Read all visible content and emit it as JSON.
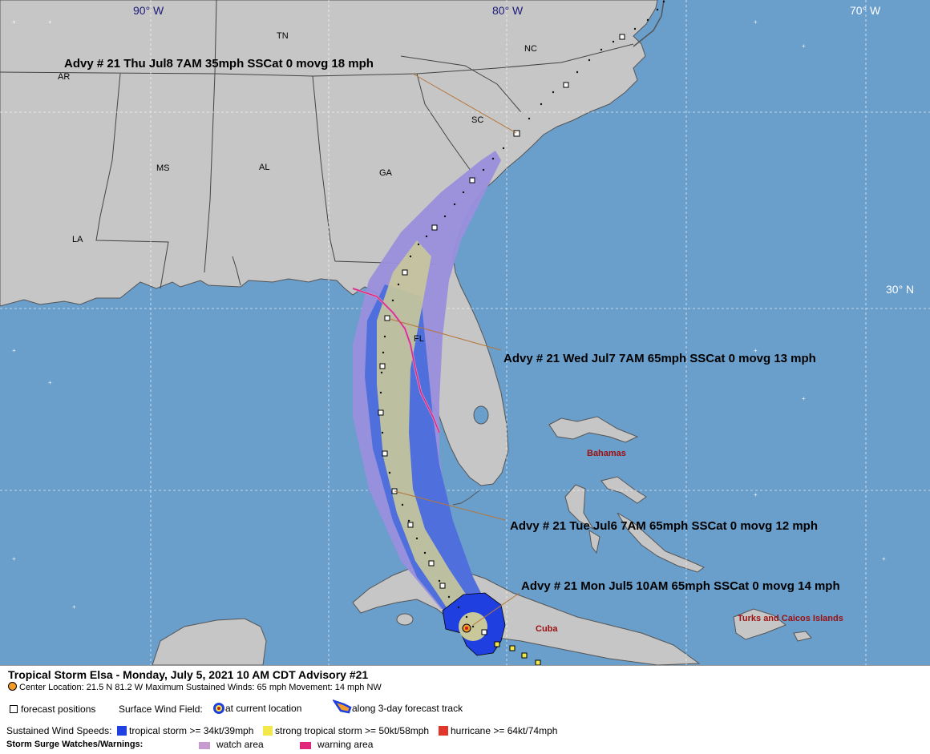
{
  "map": {
    "graticule_labels": {
      "lon_90": "90° W",
      "lon_80": "80° W",
      "lon_70": "70° W",
      "lat_30": "30° N"
    },
    "states": {
      "tn": "TN",
      "nc": "NC",
      "ar": "AR",
      "sc": "SC",
      "ms": "MS",
      "al": "AL",
      "ga": "GA",
      "la": "LA",
      "fl": "FL"
    },
    "places": {
      "bahamas": "Bahamas",
      "cuba": "Cuba",
      "turks": "Turks and Caicos Islands"
    },
    "advisories": [
      "Advy # 21 Thu Jul8 7AM  35mph SSCat 0 movg 18 mph",
      "Advy # 21 Wed Jul7 7AM  65mph SSCat 0 movg 13 mph",
      "Advy # 21 Tue Jul6 7AM  65mph SSCat 0 movg 12 mph",
      "Advy # 21 Mon Jul5 10AM  65mph SSCat 0 movg 14 mph"
    ],
    "colors": {
      "ocean": "#6a9ecb",
      "land": "#c6c6c6",
      "cone_day45": "#9a8fdc",
      "cone_day3": "#4f6fdc",
      "cone_day2": "#c9c89a",
      "watch": "#c79ad0",
      "warning": "#e2267a"
    }
  },
  "legend": {
    "title": "Tropical Storm Elsa  -  Monday, July 5, 2021  10 AM CDT   Advisory #21",
    "center_info": "Center Location: 21.5 N  81.2 W   Maximum Sustained Winds: 65 mph  Movement: 14 mph NW",
    "forecast_positions": "forecast positions",
    "surface_wind_field": "Surface Wind Field:",
    "at_current": "at current location",
    "along_track": "along 3-day forecast track",
    "sustained_label": "Sustained Wind Speeds:",
    "ts": "tropical storm >= 34kt/39mph",
    "sts": "strong tropical storm >= 50kt/58mph",
    "hurricane": "hurricane >= 64kt/74mph",
    "surge_label": "Storm Surge Watches/Warnings:",
    "watch": "watch area",
    "warning": "warning area",
    "colors": {
      "ts": "#1f3fe0",
      "sts": "#f2e84a",
      "hurricane": "#e0372a",
      "watch": "#c79ad0",
      "warning": "#e2267a"
    }
  }
}
